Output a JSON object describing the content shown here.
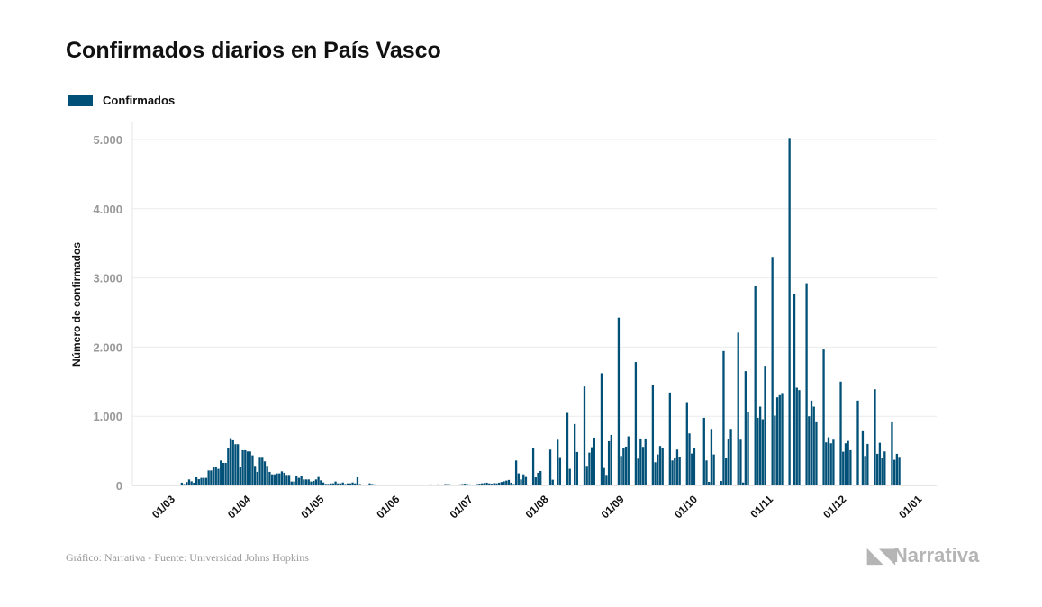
{
  "title": "Confirmados diarios en País Vasco",
  "footer": "Gráfico: Narrativa - Fuente: Universidad Johns Hopkins",
  "logo": "Narrativa",
  "colors": {
    "bar": "#005077",
    "grid": "#ececec",
    "axis": "#cfcfcf"
  },
  "chart_data": {
    "type": "bar",
    "title": "Confirmados diarios en País Vasco",
    "legend": [
      {
        "label": "Confirmados",
        "color": "#005077"
      }
    ],
    "legend_position": "top-left",
    "xlabel": "",
    "ylabel": "Número de confirmados",
    "ylim": [
      0,
      5000
    ],
    "yticks": [
      {
        "v": 0,
        "label": "0"
      },
      {
        "v": 1000,
        "label": "1.000"
      },
      {
        "v": 2000,
        "label": "2.000"
      },
      {
        "v": 3000,
        "label": "3.000"
      },
      {
        "v": 4000,
        "label": "4.000"
      },
      {
        "v": 5000,
        "label": "5.000"
      }
    ],
    "x_start": "01/03",
    "x_unit": "day",
    "xlim_days": [
      -16,
      313
    ],
    "xticks": [
      {
        "d": 0,
        "label": "01/03"
      },
      {
        "d": 31,
        "label": "01/04"
      },
      {
        "d": 61,
        "label": "01/05"
      },
      {
        "d": 92,
        "label": "01/06"
      },
      {
        "d": 122,
        "label": "01/07"
      },
      {
        "d": 153,
        "label": "01/08"
      },
      {
        "d": 184,
        "label": "01/09"
      },
      {
        "d": 214,
        "label": "01/10"
      },
      {
        "d": 245,
        "label": "01/11"
      },
      {
        "d": 275,
        "label": "01/12"
      },
      {
        "d": 306,
        "label": "01/01"
      }
    ],
    "grid": true,
    "values": [
      5,
      0,
      0,
      0,
      40,
      20,
      50,
      87,
      60,
      40,
      117,
      90,
      109,
      109,
      109,
      217,
      217,
      270,
      270,
      240,
      360,
      326,
      326,
      543,
      683,
      652,
      596,
      596,
      261,
      509,
      509,
      491,
      491,
      435,
      283,
      196,
      413,
      413,
      348,
      283,
      196,
      160,
      160,
      174,
      174,
      204,
      183,
      152,
      152,
      57,
      57,
      130,
      109,
      143,
      87,
      87,
      87,
      57,
      65,
      87,
      122,
      74,
      43,
      22,
      22,
      30,
      30,
      57,
      30,
      30,
      43,
      20,
      30,
      30,
      43,
      30,
      117,
      20,
      5,
      0,
      0,
      30,
      20,
      15,
      10,
      8,
      5,
      5,
      10,
      8,
      12,
      10,
      5,
      3,
      8,
      10,
      5,
      8,
      6,
      10,
      12,
      8,
      5,
      5,
      10,
      12,
      15,
      8,
      6,
      15,
      10,
      12,
      20,
      18,
      15,
      10,
      8,
      12,
      15,
      20,
      25,
      18,
      15,
      10,
      12,
      20,
      25,
      30,
      35,
      40,
      30,
      25,
      35,
      30,
      40,
      50,
      60,
      70,
      80,
      40,
      20,
      360,
      175,
      87,
      160,
      122,
      0,
      0,
      540,
      117,
      183,
      209,
      0,
      0,
      0,
      517,
      83,
      0,
      660,
      409,
      0,
      0,
      1048,
      240,
      0,
      887,
      483,
      0,
      0,
      1430,
      283,
      474,
      552,
      691,
      0,
      0,
      1622,
      252,
      152,
      639,
      730,
      0,
      0,
      2426,
      426,
      535,
      561,
      709,
      0,
      0,
      1783,
      387,
      678,
      557,
      678,
      0,
      0,
      1448,
      335,
      448,
      570,
      535,
      0,
      0,
      1343,
      361,
      400,
      517,
      417,
      0,
      0,
      1204,
      752,
      461,
      543,
      0,
      0,
      0,
      978,
      361,
      52,
      817,
      448,
      0,
      0,
      65,
      1943,
      391,
      665,
      817,
      0,
      0,
      2209,
      661,
      43,
      1652,
      1061,
      0,
      0,
      2878,
      978,
      1139,
      957,
      1730,
      0,
      0,
      3304,
      1009,
      1274,
      1304,
      1335,
      0,
      0,
      5022,
      0,
      2774,
      1413,
      1378,
      0,
      0,
      2922,
      1000,
      1226,
      1139,
      913,
      0,
      0,
      1965,
      622,
      696,
      609,
      661,
      0,
      0,
      1500,
      487,
      609,
      643,
      509,
      0,
      0,
      1226,
      0,
      783,
      426,
      600,
      0,
      0,
      1391,
      457,
      617,
      404,
      491,
      0,
      0,
      913,
      370,
      457,
      413
    ]
  }
}
